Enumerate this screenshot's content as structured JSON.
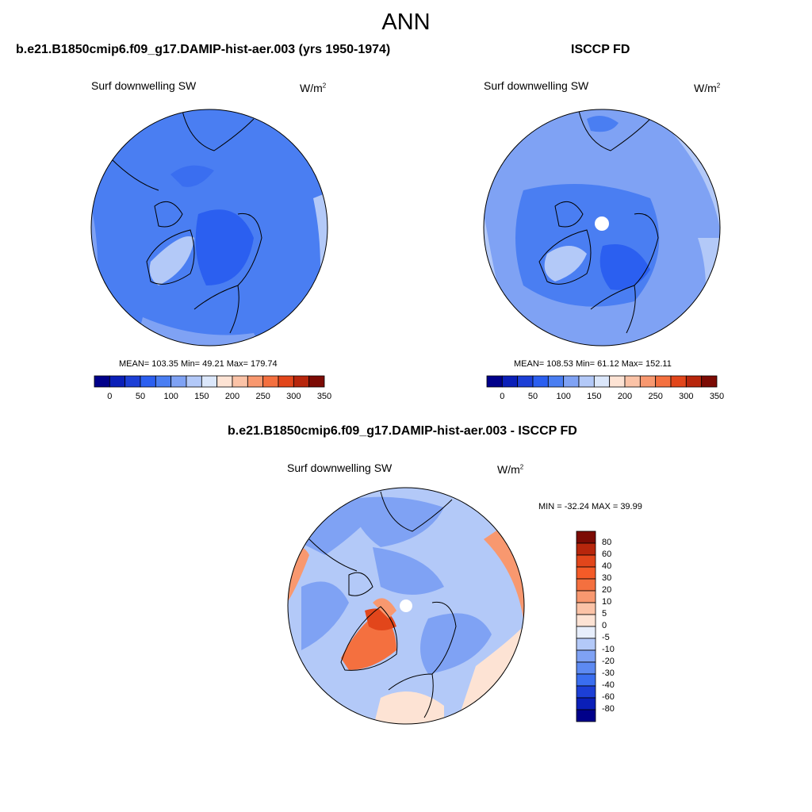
{
  "page": {
    "season": "ANN",
    "left_title": "b.e21.B1850cmip6.f09_g17.DAMIP-hist-aer.003 (yrs 1950-1974)",
    "right_title": "ISCCP FD",
    "diff_title": "b.e21.B1850cmip6.f09_g17.DAMIP-hist-aer.003 - ISCCP FD"
  },
  "panels": [
    {
      "id": "model",
      "variable": "Surf downwelling SW",
      "units": "W/m",
      "units_sup": "2",
      "stats": "MEAN= 103.35  Min=  49.21  Max= 179.74",
      "pole_hole": false
    },
    {
      "id": "obs",
      "variable": "Surf downwelling SW",
      "units": "W/m",
      "units_sup": "2",
      "stats": "MEAN= 108.53  Min=  61.12  Max= 152.11",
      "pole_hole": true
    },
    {
      "id": "diff",
      "variable": "Surf downwelling SW",
      "units": "W/m",
      "units_sup": "2",
      "stats": "MIN = -32.24 MAX =  39.99",
      "pole_hole": true
    }
  ],
  "colorbar_abs": {
    "orientation": "horizontal",
    "tick_labels": [
      "0",
      "50",
      "100",
      "150",
      "200",
      "250",
      "300",
      "350"
    ],
    "colors": [
      "#00008a",
      "#0a1fb8",
      "#1c3fd6",
      "#2b5ff0",
      "#4a7ef2",
      "#7fa2f4",
      "#b3c9f8",
      "#dbe7fb",
      "#fde3d4",
      "#fbc3a7",
      "#f8986f",
      "#f4703f",
      "#e2461b",
      "#b7260c",
      "#7c0b04"
    ]
  },
  "colorbar_diff": {
    "orientation": "vertical",
    "tick_labels": [
      "80",
      "60",
      "40",
      "30",
      "20",
      "10",
      "5",
      "0",
      "-5",
      "-10",
      "-20",
      "-30",
      "-40",
      "-60",
      "-80"
    ],
    "colors": [
      "#7c0b04",
      "#b7260c",
      "#e2461b",
      "#f45b28",
      "#f4703f",
      "#f8986f",
      "#fbc3a7",
      "#fde3d4",
      "#e7eefb",
      "#b3c9f8",
      "#7fa2f4",
      "#5d8af2",
      "#3a6ef0",
      "#1c3fd6",
      "#0a1fb8",
      "#00008a"
    ]
  }
}
